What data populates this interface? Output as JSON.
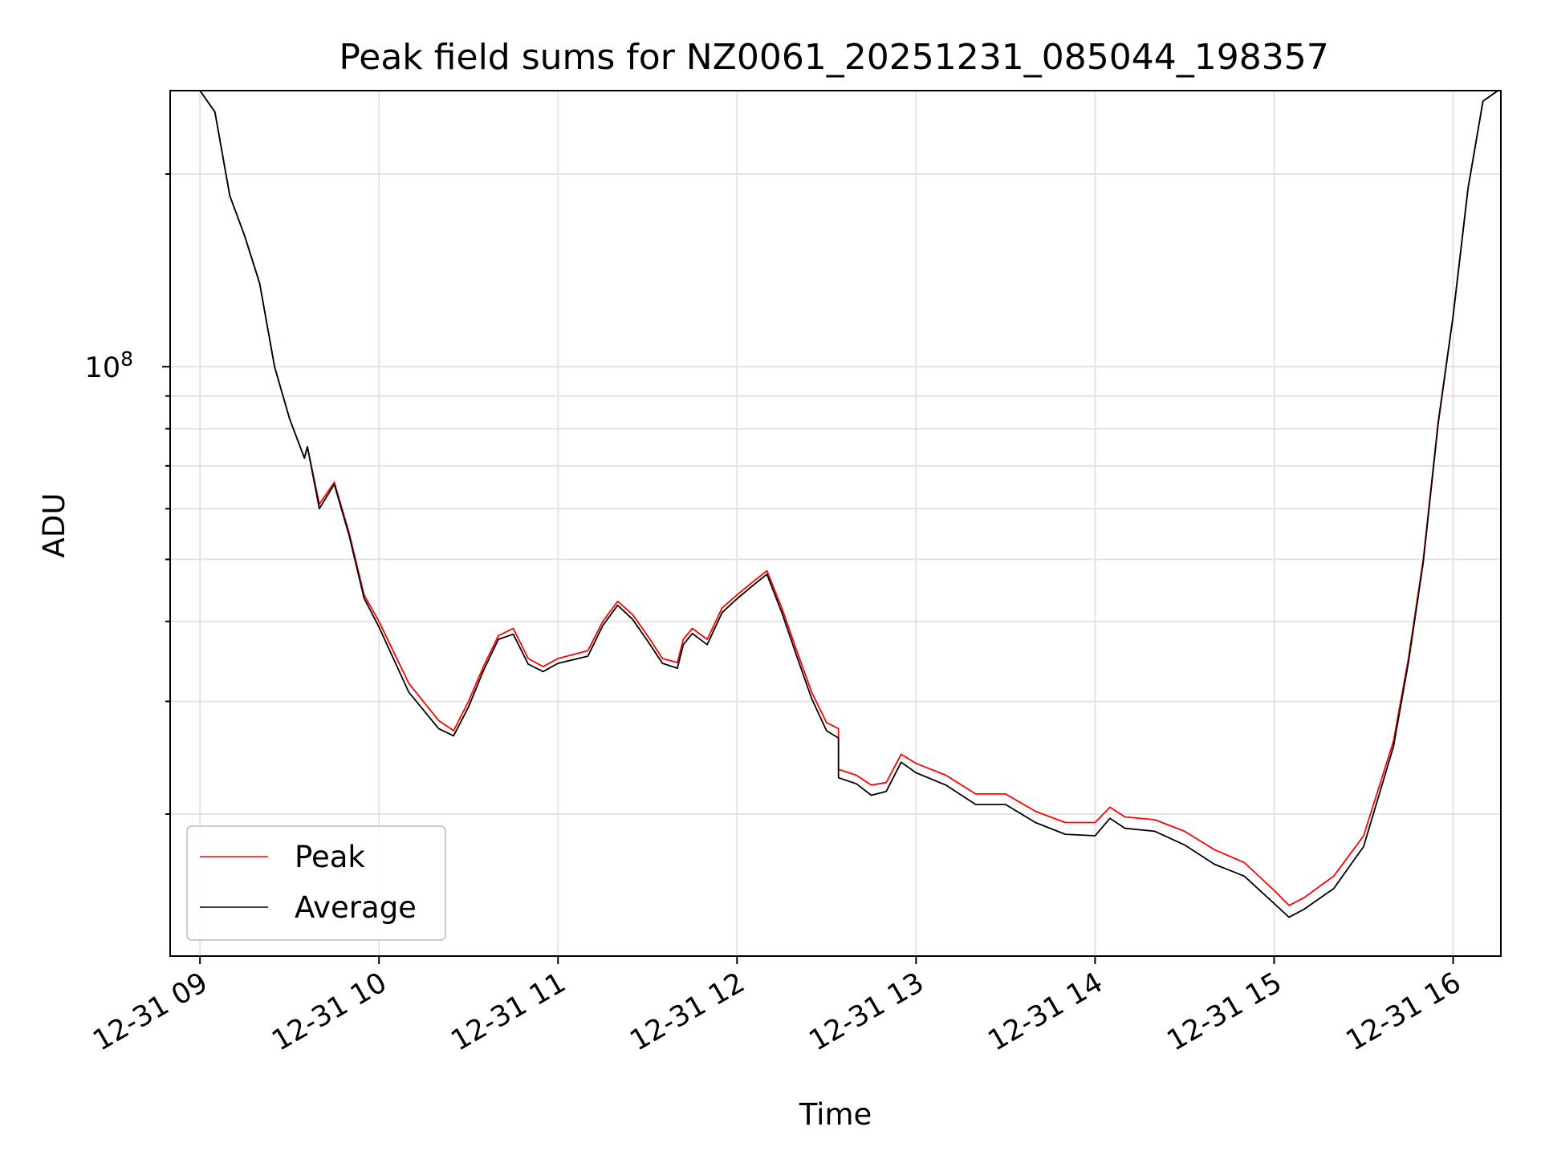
{
  "chart_data": {
    "type": "line",
    "title": "Peak field sums for NZ0061_20251231_085044_198357",
    "xlabel": "Time",
    "ylabel": "ADU",
    "xlim": [
      "2025-12-31 08:50",
      "2025-12-31 16:16"
    ],
    "ylim": [
      12000000,
      270000000
    ],
    "yscale": "log",
    "grid": true,
    "legend_position": "lower-left",
    "x_ticks": [
      {
        "at": "2025-12-31 09:00",
        "label": "12-31 09"
      },
      {
        "at": "2025-12-31 10:00",
        "label": "12-31 10"
      },
      {
        "at": "2025-12-31 11:00",
        "label": "12-31 11"
      },
      {
        "at": "2025-12-31 12:00",
        "label": "12-31 12"
      },
      {
        "at": "2025-12-31 13:00",
        "label": "12-31 13"
      },
      {
        "at": "2025-12-31 14:00",
        "label": "12-31 14"
      },
      {
        "at": "2025-12-31 15:00",
        "label": "12-31 15"
      },
      {
        "at": "2025-12-31 16:00",
        "label": "12-31 16"
      }
    ],
    "y_major_ticks": [
      {
        "value": 100000000,
        "base": "10",
        "exp": "8"
      }
    ],
    "y_minor_ticks": [
      20000000,
      30000000,
      40000000,
      50000000,
      60000000,
      70000000,
      80000000,
      90000000,
      200000000
    ],
    "series": [
      {
        "name": "Peak",
        "color": "#ff0000",
        "points": [
          [
            "2025-12-31 09:00",
            270000000
          ],
          [
            "2025-12-31 09:05",
            250000000
          ],
          [
            "2025-12-31 09:10",
            185000000
          ],
          [
            "2025-12-31 09:15",
            160000000
          ],
          [
            "2025-12-31 09:20",
            135000000
          ],
          [
            "2025-12-31 09:25",
            100000000
          ],
          [
            "2025-12-31 09:30",
            83000000
          ],
          [
            "2025-12-31 09:35",
            72000000
          ],
          [
            "2025-12-31 09:36",
            75000000
          ],
          [
            "2025-12-31 09:40",
            61000000
          ],
          [
            "2025-12-31 09:45",
            66000000
          ],
          [
            "2025-12-31 09:50",
            55000000
          ],
          [
            "2025-12-31 09:55",
            44000000
          ],
          [
            "2025-12-31 10:00",
            40000000
          ],
          [
            "2025-12-31 10:10",
            32000000
          ],
          [
            "2025-12-31 10:20",
            28000000
          ],
          [
            "2025-12-31 10:25",
            27000000
          ],
          [
            "2025-12-31 10:30",
            30000000
          ],
          [
            "2025-12-31 10:35",
            34000000
          ],
          [
            "2025-12-31 10:40",
            38000000
          ],
          [
            "2025-12-31 10:45",
            39000000
          ],
          [
            "2025-12-31 10:50",
            35000000
          ],
          [
            "2025-12-31 10:55",
            34000000
          ],
          [
            "2025-12-31 11:00",
            35000000
          ],
          [
            "2025-12-31 11:10",
            36000000
          ],
          [
            "2025-12-31 11:15",
            40000000
          ],
          [
            "2025-12-31 11:20",
            43000000
          ],
          [
            "2025-12-31 11:25",
            41000000
          ],
          [
            "2025-12-31 11:30",
            38000000
          ],
          [
            "2025-12-31 11:35",
            35000000
          ],
          [
            "2025-12-31 11:40",
            34500000
          ],
          [
            "2025-12-31 11:42",
            37500000
          ],
          [
            "2025-12-31 11:45",
            39000000
          ],
          [
            "2025-12-31 11:50",
            37500000
          ],
          [
            "2025-12-31 11:55",
            42000000
          ],
          [
            "2025-12-31 12:00",
            44000000
          ],
          [
            "2025-12-31 12:05",
            46000000
          ],
          [
            "2025-12-31 12:10",
            48000000
          ],
          [
            "2025-12-31 12:15",
            42000000
          ],
          [
            "2025-12-31 12:20",
            36000000
          ],
          [
            "2025-12-31 12:25",
            31000000
          ],
          [
            "2025-12-31 12:30",
            27800000
          ],
          [
            "2025-12-31 12:34",
            27200000
          ],
          [
            "2025-12-31 12:34",
            23500000
          ],
          [
            "2025-12-31 12:40",
            23000000
          ],
          [
            "2025-12-31 12:45",
            22200000
          ],
          [
            "2025-12-31 12:50",
            22400000
          ],
          [
            "2025-12-31 12:55",
            24800000
          ],
          [
            "2025-12-31 13:00",
            24000000
          ],
          [
            "2025-12-31 13:10",
            23000000
          ],
          [
            "2025-12-31 13:20",
            21500000
          ],
          [
            "2025-12-31 13:30",
            21500000
          ],
          [
            "2025-12-31 13:40",
            20200000
          ],
          [
            "2025-12-31 13:50",
            19400000
          ],
          [
            "2025-12-31 14:00",
            19400000
          ],
          [
            "2025-12-31 14:05",
            20500000
          ],
          [
            "2025-12-31 14:10",
            19800000
          ],
          [
            "2025-12-31 14:20",
            19600000
          ],
          [
            "2025-12-31 14:30",
            18800000
          ],
          [
            "2025-12-31 14:40",
            17600000
          ],
          [
            "2025-12-31 14:50",
            16800000
          ],
          [
            "2025-12-31 15:00",
            15200000
          ],
          [
            "2025-12-31 15:05",
            14400000
          ],
          [
            "2025-12-31 15:10",
            14800000
          ],
          [
            "2025-12-31 15:20",
            16000000
          ],
          [
            "2025-12-31 15:30",
            18500000
          ],
          [
            "2025-12-31 15:40",
            26000000
          ],
          [
            "2025-12-31 15:45",
            35000000
          ],
          [
            "2025-12-31 15:50",
            50000000
          ],
          [
            "2025-12-31 15:55",
            82000000
          ],
          [
            "2025-12-31 16:00",
            120000000
          ],
          [
            "2025-12-31 16:05",
            190000000
          ],
          [
            "2025-12-31 16:10",
            260000000
          ],
          [
            "2025-12-31 16:15",
            270000000
          ]
        ]
      },
      {
        "name": "Average",
        "color": "#000000",
        "points": [
          [
            "2025-12-31 09:00",
            270000000
          ],
          [
            "2025-12-31 09:05",
            250000000
          ],
          [
            "2025-12-31 09:10",
            185000000
          ],
          [
            "2025-12-31 09:15",
            160000000
          ],
          [
            "2025-12-31 09:20",
            135000000
          ],
          [
            "2025-12-31 09:25",
            100000000
          ],
          [
            "2025-12-31 09:30",
            83000000
          ],
          [
            "2025-12-31 09:35",
            72000000
          ],
          [
            "2025-12-31 09:36",
            75000000
          ],
          [
            "2025-12-31 09:40",
            60000000
          ],
          [
            "2025-12-31 09:45",
            65500000
          ],
          [
            "2025-12-31 09:50",
            54500000
          ],
          [
            "2025-12-31 09:55",
            43500000
          ],
          [
            "2025-12-31 10:00",
            39200000
          ],
          [
            "2025-12-31 10:10",
            31000000
          ],
          [
            "2025-12-31 10:20",
            27200000
          ],
          [
            "2025-12-31 10:25",
            26500000
          ],
          [
            "2025-12-31 10:30",
            29400000
          ],
          [
            "2025-12-31 10:35",
            33500000
          ],
          [
            "2025-12-31 10:40",
            37500000
          ],
          [
            "2025-12-31 10:45",
            38200000
          ],
          [
            "2025-12-31 10:50",
            34300000
          ],
          [
            "2025-12-31 10:55",
            33400000
          ],
          [
            "2025-12-31 11:00",
            34400000
          ],
          [
            "2025-12-31 11:10",
            35300000
          ],
          [
            "2025-12-31 11:15",
            39400000
          ],
          [
            "2025-12-31 11:20",
            42400000
          ],
          [
            "2025-12-31 11:25",
            40300000
          ],
          [
            "2025-12-31 11:30",
            37300000
          ],
          [
            "2025-12-31 11:35",
            34400000
          ],
          [
            "2025-12-31 11:40",
            33800000
          ],
          [
            "2025-12-31 11:42",
            36800000
          ],
          [
            "2025-12-31 11:45",
            38300000
          ],
          [
            "2025-12-31 11:50",
            36800000
          ],
          [
            "2025-12-31 11:55",
            41300000
          ],
          [
            "2025-12-31 12:00",
            43400000
          ],
          [
            "2025-12-31 12:05",
            45400000
          ],
          [
            "2025-12-31 12:10",
            47400000
          ],
          [
            "2025-12-31 12:15",
            41300000
          ],
          [
            "2025-12-31 12:20",
            35300000
          ],
          [
            "2025-12-31 12:25",
            30300000
          ],
          [
            "2025-12-31 12:30",
            27000000
          ],
          [
            "2025-12-31 12:34",
            26300000
          ],
          [
            "2025-12-31 12:34",
            22800000
          ],
          [
            "2025-12-31 12:40",
            22300000
          ],
          [
            "2025-12-31 12:45",
            21400000
          ],
          [
            "2025-12-31 12:50",
            21700000
          ],
          [
            "2025-12-31 12:55",
            24100000
          ],
          [
            "2025-12-31 13:00",
            23200000
          ],
          [
            "2025-12-31 13:10",
            22200000
          ],
          [
            "2025-12-31 13:20",
            20700000
          ],
          [
            "2025-12-31 13:30",
            20700000
          ],
          [
            "2025-12-31 13:40",
            19400000
          ],
          [
            "2025-12-31 13:50",
            18600000
          ],
          [
            "2025-12-31 14:00",
            18500000
          ],
          [
            "2025-12-31 14:05",
            19700000
          ],
          [
            "2025-12-31 14:10",
            19000000
          ],
          [
            "2025-12-31 14:20",
            18800000
          ],
          [
            "2025-12-31 14:30",
            17900000
          ],
          [
            "2025-12-31 14:40",
            16700000
          ],
          [
            "2025-12-31 14:50",
            16000000
          ],
          [
            "2025-12-31 15:00",
            14500000
          ],
          [
            "2025-12-31 15:05",
            13800000
          ],
          [
            "2025-12-31 15:10",
            14200000
          ],
          [
            "2025-12-31 15:20",
            15300000
          ],
          [
            "2025-12-31 15:30",
            17800000
          ],
          [
            "2025-12-31 15:40",
            25500000
          ],
          [
            "2025-12-31 15:45",
            34500000
          ],
          [
            "2025-12-31 15:50",
            49500000
          ],
          [
            "2025-12-31 15:55",
            81500000
          ],
          [
            "2025-12-31 16:00",
            120000000
          ],
          [
            "2025-12-31 16:05",
            190000000
          ],
          [
            "2025-12-31 16:10",
            260000000
          ],
          [
            "2025-12-31 16:15",
            270000000
          ]
        ]
      }
    ]
  }
}
